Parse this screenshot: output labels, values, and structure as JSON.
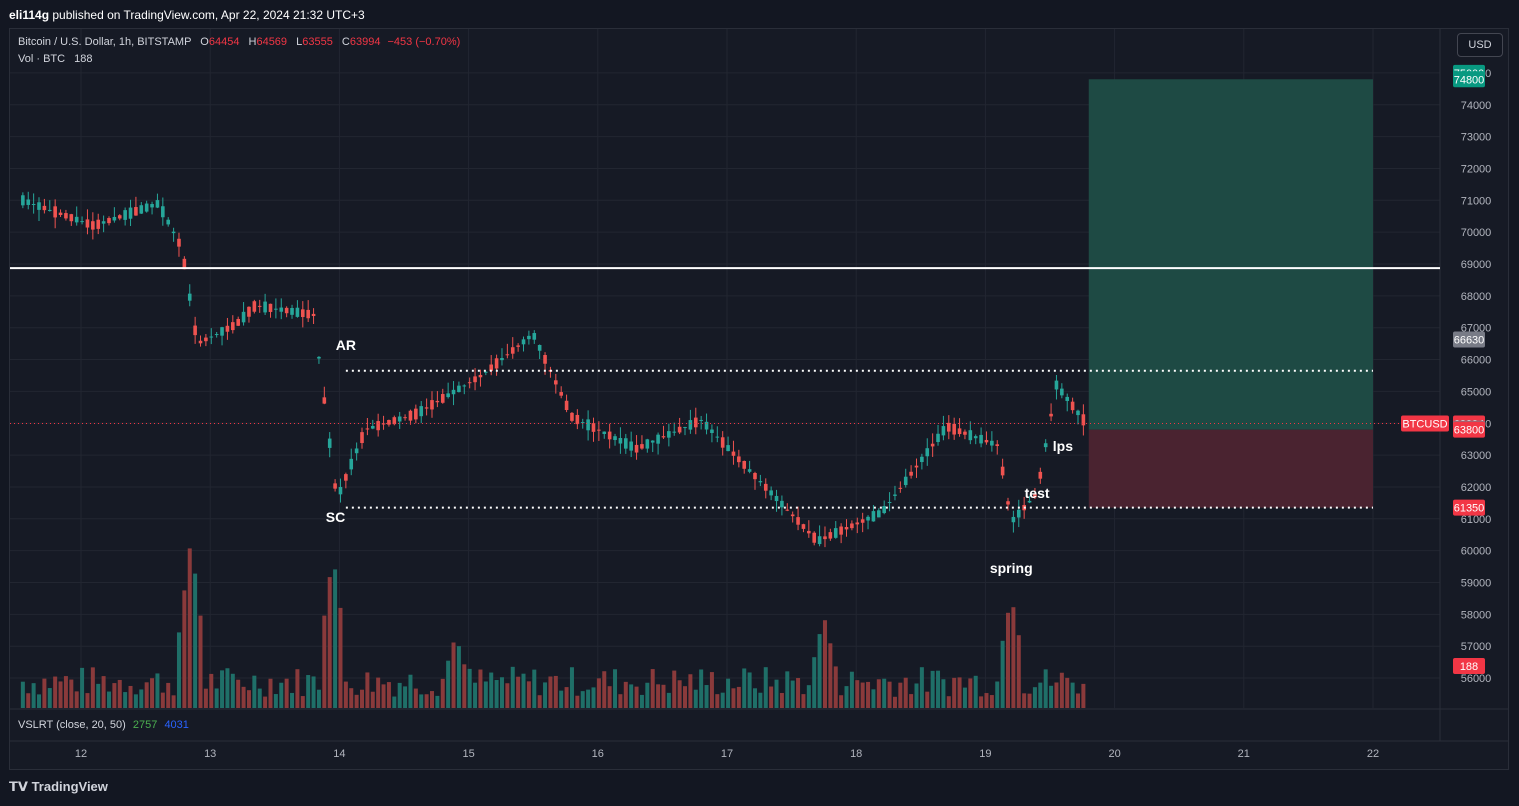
{
  "header": {
    "author": "eli114g",
    "published_text": " published on TradingView.com, Apr 22, 2024 21:32 UTC+3"
  },
  "legend": {
    "symbol": "Bitcoin / U.S. Dollar, 1h, BITSTAMP",
    "o_label": "O",
    "o_value": "64454",
    "h_label": "H",
    "h_value": "64569",
    "l_label": "L",
    "l_value": "63555",
    "c_label": "C",
    "c_value": "63994",
    "change": "−453 (−0.70%)",
    "vol_label": "Vol · BTC",
    "vol_value": "188"
  },
  "currency_button": "USD",
  "indicator": {
    "name": "VSLRT (close, 20, 50)",
    "value1": "2757",
    "value2": "4031"
  },
  "footer": {
    "brand": "TradingView"
  },
  "colors": {
    "up": "#26a69a",
    "down": "#ef5350",
    "background": "#161a25",
    "profit_zone": "#1e4a44",
    "loss_zone": "#4a2330"
  },
  "chart_data": {
    "type": "candlestick",
    "price_axis": {
      "ticks": [
        "75000",
        "74000",
        "73000",
        "72000",
        "71000",
        "70000",
        "69000",
        "68000",
        "67000",
        "66000",
        "65000",
        "64000",
        "63000",
        "62000",
        "61000",
        "60000",
        "59000",
        "58000",
        "57000",
        "56000"
      ]
    },
    "time_axis": {
      "ticks": [
        "12",
        "13",
        "14",
        "15",
        "16",
        "17",
        "18",
        "19",
        "20",
        "21",
        "22"
      ]
    },
    "price_labels": [
      {
        "text": "75000",
        "price": 75000,
        "color": "#089981"
      },
      {
        "text": "74800",
        "price": 74800,
        "color": "#089981"
      },
      {
        "text": "66630",
        "price": 66630,
        "color": "#787b86"
      },
      {
        "text": "BTCUSD",
        "price": 63994,
        "color": "#f23645"
      },
      {
        "text": "63994",
        "price": 63994,
        "color": "#f23645"
      },
      {
        "text": "63833",
        "price": 63833,
        "color": "#787b86"
      },
      {
        "text": "63800",
        "price": 63800,
        "color": "#f23645"
      },
      {
        "text": "61350",
        "price": 61350,
        "color": "#f23645"
      },
      {
        "text": "188",
        "volume_label": true,
        "color": "#f23645"
      }
    ],
    "horizontal_lines": [
      {
        "price": 68870,
        "style": "solid",
        "color": "#ffffff"
      },
      {
        "price": 65650,
        "style": "dotted",
        "color": "#ffffff"
      },
      {
        "price": 61350,
        "style": "dotted",
        "color": "#ffffff"
      },
      {
        "price": 63994,
        "style": "dotted-thin",
        "color": "#f23645"
      }
    ],
    "position": {
      "entry": 63800,
      "target": 74800,
      "stop": 61350,
      "start_day": 19.8,
      "end_day": 22
    },
    "annotations": [
      {
        "text": "AR",
        "day": 14.05,
        "price": 66300
      },
      {
        "text": "SC",
        "day": 13.97,
        "price": 60900
      },
      {
        "text": "lps",
        "day": 19.6,
        "price": 63130
      },
      {
        "text": "test",
        "day": 19.4,
        "price": 61650
      },
      {
        "text": "spring",
        "day": 19.2,
        "price": 59300
      }
    ],
    "key_points": [
      {
        "day": 11.55,
        "price": 71000
      },
      {
        "day": 12.1,
        "price": 70200
      },
      {
        "day": 12.6,
        "price": 70900
      },
      {
        "day": 12.78,
        "price": 69500
      },
      {
        "day": 12.9,
        "price": 66500
      },
      {
        "day": 13.2,
        "price": 67100
      },
      {
        "day": 13.35,
        "price": 67700
      },
      {
        "day": 13.8,
        "price": 67400
      },
      {
        "day": 13.98,
        "price": 61600
      },
      {
        "day": 14.2,
        "price": 63800
      },
      {
        "day": 14.6,
        "price": 64300
      },
      {
        "day": 15.1,
        "price": 65500
      },
      {
        "day": 15.5,
        "price": 66800
      },
      {
        "day": 15.8,
        "price": 64200
      },
      {
        "day": 16.3,
        "price": 63200
      },
      {
        "day": 16.8,
        "price": 64100
      },
      {
        "day": 17.7,
        "price": 60300
      },
      {
        "day": 18.2,
        "price": 61200
      },
      {
        "day": 18.7,
        "price": 63900
      },
      {
        "day": 19.1,
        "price": 63300
      },
      {
        "day": 19.2,
        "price": 60900
      },
      {
        "day": 19.4,
        "price": 61800
      },
      {
        "day": 19.55,
        "price": 65200
      },
      {
        "day": 19.78,
        "price": 63994
      }
    ],
    "volume_spikes": [
      {
        "day": 12.85,
        "value": 6000
      },
      {
        "day": 13.95,
        "value": 5500
      },
      {
        "day": 14.9,
        "value": 2600
      },
      {
        "day": 17.75,
        "value": 3300
      },
      {
        "day": 19.2,
        "value": 4000
      }
    ]
  }
}
